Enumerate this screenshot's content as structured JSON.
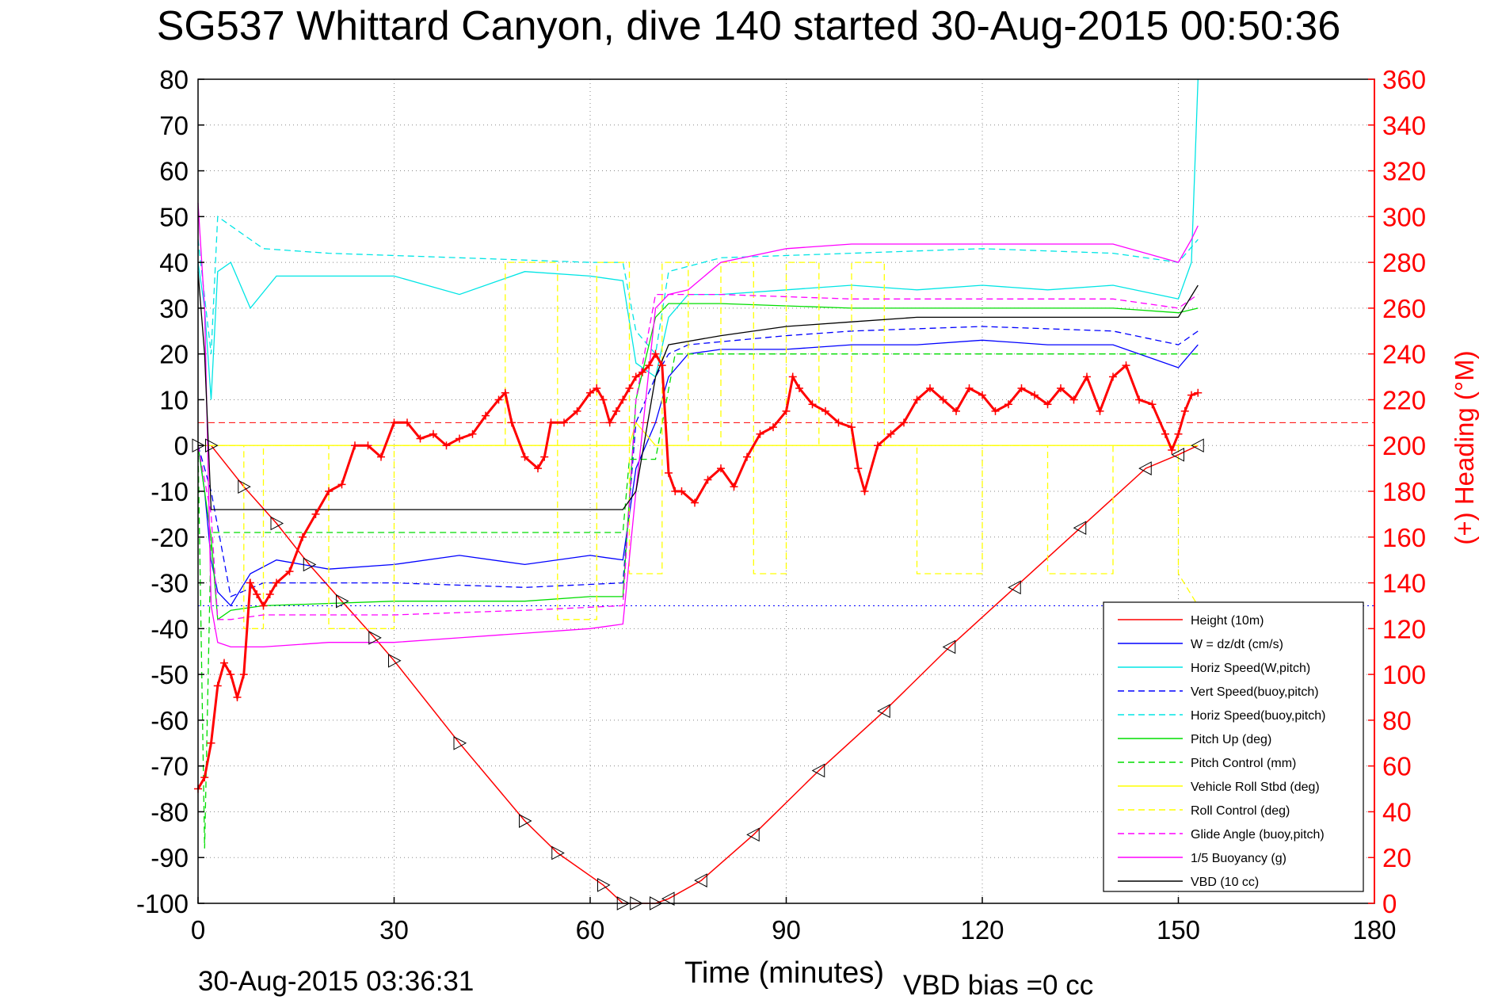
{
  "chart_data": {
    "type": "line",
    "title": "SG537 Whittard Canyon, dive 140 started 30-Aug-2015 00:50:36",
    "xlabel": "Time (minutes)",
    "ylabel_right": "(+) Heading (°M)",
    "xlim": [
      0,
      180
    ],
    "ylim_left": [
      -100,
      80
    ],
    "ylim_right": [
      0,
      360
    ],
    "x_ticks": [
      "0",
      "30",
      "60",
      "90",
      "120",
      "150",
      "180"
    ],
    "y_left_ticks": [
      "80",
      "70",
      "60",
      "50",
      "40",
      "30",
      "20",
      "10",
      "0",
      "-10",
      "-20",
      "-30",
      "-40",
      "-50",
      "-60",
      "-70",
      "-80",
      "-90",
      "-100"
    ],
    "y_right_ticks": [
      "360",
      "340",
      "320",
      "300",
      "280",
      "260",
      "240",
      "220",
      "200",
      "180",
      "160",
      "140",
      "120",
      "100",
      "80",
      "60",
      "40",
      "20",
      "0"
    ],
    "grid": true,
    "legend_position": "bottom-right",
    "footer_left": "30-Aug-2015 03:36:31",
    "footer_right": "VBD bias =0 cc",
    "series": [
      {
        "name": "Height (10m)",
        "color": "#ff0000",
        "style": "solid",
        "x": [
          0,
          2,
          7,
          12,
          17,
          22,
          27,
          30,
          40,
          50,
          55,
          62,
          65,
          67,
          70,
          72,
          77,
          85,
          95,
          105,
          115,
          125,
          135,
          145,
          150,
          153
        ],
        "y": [
          0,
          0,
          -9,
          -17,
          -26,
          -34,
          -42,
          -47,
          -65,
          -82,
          -89,
          -96,
          -100,
          -100,
          -100,
          -99,
          -95,
          -85,
          -71,
          -58,
          -44,
          -31,
          -18,
          -5,
          -2,
          0
        ]
      },
      {
        "name": "W = dz/dt (cm/s)",
        "color": "#0000ff",
        "style": "solid",
        "x": [
          0,
          1,
          2,
          3,
          5,
          8,
          12,
          20,
          30,
          40,
          50,
          60,
          65,
          67,
          70,
          72,
          75,
          80,
          90,
          100,
          110,
          120,
          130,
          140,
          150,
          153
        ],
        "y": [
          0,
          -10,
          -25,
          -32,
          -35,
          -28,
          -25,
          -27,
          -26,
          -24,
          -26,
          -24,
          -25,
          -5,
          5,
          15,
          20,
          21,
          21,
          22,
          22,
          23,
          22,
          22,
          17,
          22
        ]
      },
      {
        "name": "Horiz Speed(W,pitch)",
        "color": "#00e5e5",
        "style": "solid",
        "x": [
          0,
          1,
          2,
          3,
          5,
          8,
          12,
          20,
          30,
          40,
          50,
          60,
          65,
          67,
          70,
          72,
          75,
          80,
          90,
          100,
          110,
          120,
          130,
          140,
          150,
          152,
          153
        ],
        "y": [
          40,
          30,
          10,
          38,
          40,
          30,
          37,
          37,
          37,
          33,
          38,
          37,
          36,
          18,
          15,
          28,
          33,
          33,
          34,
          35,
          34,
          35,
          34,
          35,
          32,
          40,
          80
        ]
      },
      {
        "name": "Vert Speed(buoy,pitch)",
        "color": "#0000ff",
        "style": "dashed",
        "x": [
          0,
          2,
          5,
          10,
          30,
          50,
          65,
          67,
          70,
          72,
          75,
          90,
          100,
          120,
          140,
          150,
          153
        ],
        "y": [
          0,
          -10,
          -33,
          -30,
          -30,
          -31,
          -30,
          5,
          15,
          20,
          22,
          24,
          25,
          26,
          25,
          22,
          25
        ]
      },
      {
        "name": "Horiz Speed(buoy,pitch)",
        "color": "#00e5e5",
        "style": "dashed",
        "x": [
          0,
          2,
          3,
          5,
          10,
          20,
          40,
          60,
          65,
          67,
          70,
          72,
          80,
          100,
          120,
          140,
          150,
          153
        ],
        "y": [
          45,
          20,
          50,
          48,
          43,
          42,
          41,
          40,
          40,
          25,
          20,
          38,
          41,
          42,
          43,
          42,
          40,
          45
        ]
      },
      {
        "name": "Pitch Up (deg)",
        "color": "#00dd00",
        "style": "solid",
        "x": [
          0,
          2,
          3,
          5,
          10,
          30,
          50,
          60,
          65,
          67,
          70,
          72,
          80,
          100,
          120,
          140,
          150,
          153
        ],
        "y": [
          0,
          -20,
          -38,
          -36,
          -35,
          -34,
          -34,
          -33,
          -33,
          10,
          28,
          31,
          31,
          30,
          30,
          30,
          29,
          30
        ]
      },
      {
        "name": "Pitch Control (mm)",
        "color": "#00dd00",
        "style": "dashed",
        "x": [
          0,
          1,
          2,
          3,
          10,
          30,
          50,
          65,
          66,
          70,
          73,
          90,
          120,
          150,
          153
        ],
        "y": [
          0,
          -88,
          -19,
          -19,
          -19,
          -19,
          -19,
          -19,
          -3,
          -3,
          20,
          20,
          20,
          20,
          20
        ]
      },
      {
        "name": "Vehicle Roll Stbd (deg)",
        "color": "#ffff00",
        "style": "solid",
        "x": [
          0,
          30,
          60,
          66,
          67,
          70,
          90,
          120,
          150,
          153
        ],
        "y": [
          0,
          0,
          0,
          0,
          5,
          0,
          0,
          0,
          0,
          0
        ]
      },
      {
        "name": "Roll Control (deg)",
        "color": "#ffff00",
        "style": "dashed",
        "x": [
          0,
          7,
          7,
          10,
          10,
          20,
          20,
          30,
          30,
          47,
          47,
          55,
          55,
          61,
          61,
          66,
          66,
          71,
          71,
          75,
          75,
          80,
          80,
          85,
          85,
          90,
          90,
          95,
          95,
          100,
          100,
          105,
          105,
          110,
          110,
          120,
          120,
          130,
          130,
          140,
          140,
          150,
          150,
          153
        ],
        "y": [
          0,
          0,
          -40,
          -40,
          0,
          0,
          -40,
          -40,
          0,
          0,
          40,
          40,
          -38,
          -38,
          40,
          40,
          -28,
          -28,
          40,
          40,
          0,
          0,
          40,
          40,
          -28,
          -28,
          40,
          40,
          0,
          0,
          40,
          40,
          0,
          0,
          -28,
          -28,
          0,
          0,
          -28,
          -28,
          0,
          0,
          -28,
          -35
        ]
      },
      {
        "name": "Glide Angle (buoy,pitch)",
        "color": "#ff00ff",
        "style": "dashed",
        "x": [
          0,
          2,
          3,
          5,
          10,
          30,
          50,
          65,
          67,
          70,
          72,
          80,
          100,
          120,
          140,
          150,
          153
        ],
        "y": [
          0,
          -15,
          -38,
          -38,
          -37,
          -37,
          -36,
          -35,
          10,
          33,
          33,
          33,
          32,
          32,
          32,
          30,
          33
        ]
      },
      {
        "name": "1/5 Buoyancy (g)",
        "color": "#ff00ff",
        "style": "solid",
        "x": [
          0,
          1,
          2,
          3,
          5,
          10,
          20,
          30,
          40,
          50,
          60,
          65,
          67,
          70,
          72,
          75,
          80,
          90,
          100,
          110,
          120,
          130,
          140,
          150,
          152,
          153
        ],
        "y": [
          53,
          30,
          -35,
          -43,
          -44,
          -44,
          -43,
          -43,
          -42,
          -41,
          -40,
          -39,
          -10,
          30,
          33,
          34,
          40,
          43,
          44,
          44,
          44,
          44,
          44,
          40,
          45,
          48
        ]
      },
      {
        "name": "VBD (10 cc)",
        "color": "#000000",
        "style": "solid",
        "x": [
          0,
          1,
          2,
          3,
          10,
          30,
          50,
          65,
          67,
          70,
          72,
          80,
          90,
          100,
          110,
          120,
          130,
          140,
          150,
          153
        ],
        "y": [
          38,
          20,
          -14,
          -14,
          -14,
          -14,
          -14,
          -14,
          -10,
          15,
          22,
          24,
          26,
          27,
          28,
          28,
          28,
          28,
          28,
          35
        ]
      }
    ],
    "heading_series": {
      "axis": "right",
      "color": "#ff0000",
      "marker": "+",
      "x": [
        0,
        1,
        2,
        3,
        4,
        5,
        6,
        7,
        8,
        9,
        10,
        11,
        12,
        14,
        16,
        18,
        20,
        22,
        24,
        26,
        28,
        30,
        32,
        34,
        36,
        38,
        40,
        42,
        44,
        46,
        47,
        48,
        50,
        52,
        53,
        54,
        56,
        58,
        60,
        61,
        62,
        63,
        64,
        65,
        66,
        67,
        68,
        69,
        70,
        71,
        72,
        73,
        74,
        76,
        78,
        80,
        82,
        84,
        86,
        88,
        90,
        91,
        92,
        94,
        96,
        98,
        100,
        101,
        102,
        104,
        106,
        108,
        110,
        112,
        114,
        116,
        118,
        120,
        122,
        124,
        126,
        128,
        130,
        132,
        134,
        136,
        138,
        140,
        142,
        144,
        146,
        148,
        149,
        150,
        151,
        152,
        153
      ],
      "y": [
        50,
        55,
        70,
        95,
        105,
        100,
        90,
        100,
        140,
        135,
        130,
        135,
        140,
        145,
        160,
        170,
        180,
        183,
        200,
        200,
        195,
        210,
        210,
        203,
        205,
        200,
        203,
        205,
        213,
        220,
        223,
        210,
        195,
        190,
        195,
        210,
        210,
        215,
        223,
        225,
        220,
        210,
        215,
        220,
        225,
        230,
        232,
        235,
        240,
        235,
        188,
        180,
        180,
        175,
        185,
        190,
        182,
        195,
        205,
        208,
        215,
        230,
        225,
        218,
        215,
        210,
        208,
        190,
        180,
        200,
        205,
        210,
        220,
        225,
        220,
        215,
        225,
        222,
        215,
        218,
        225,
        222,
        218,
        225,
        220,
        230,
        215,
        230,
        235,
        220,
        218,
        205,
        198,
        205,
        215,
        222,
        223
      ]
    },
    "reference_lines": [
      {
        "y": 5,
        "axis": "left",
        "color": "#ff0000",
        "style": "dashed"
      },
      {
        "y": -35,
        "axis": "left",
        "color": "#0000ff",
        "style": "dotted"
      }
    ]
  }
}
